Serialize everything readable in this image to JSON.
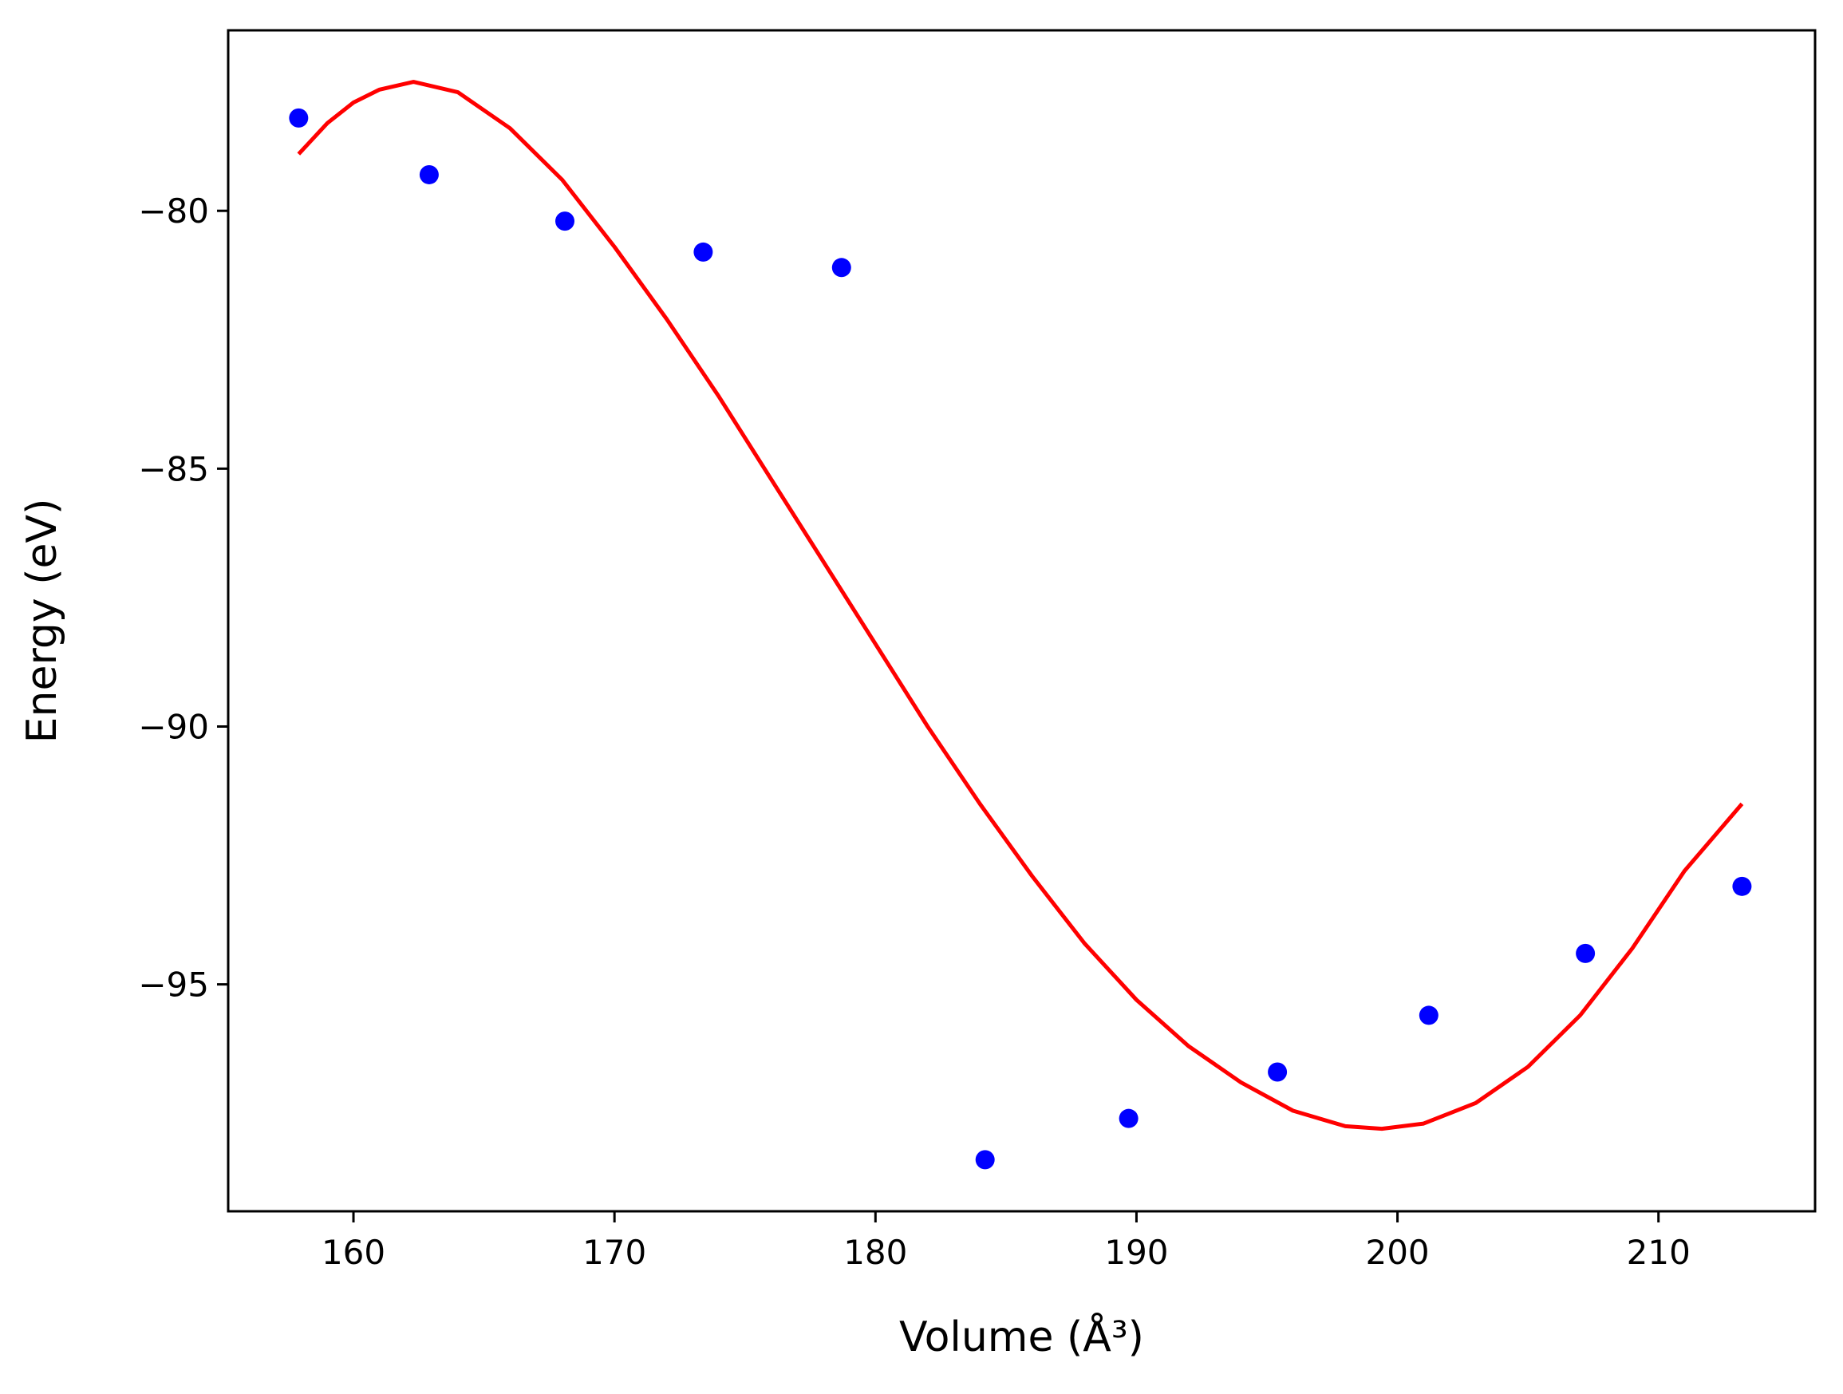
{
  "chart_data": {
    "type": "scatter",
    "xlabel": "Volume (Å³)",
    "ylabel": "Energy (eV)",
    "xlim": [
      155.2,
      216.0
    ],
    "ylim": [
      -99.4,
      -76.5
    ],
    "x_ticks": [
      160,
      170,
      180,
      190,
      200,
      210
    ],
    "y_ticks": [
      -95,
      -90,
      -85,
      -80
    ],
    "x_tick_labels": [
      "160",
      "170",
      "180",
      "190",
      "200",
      "210"
    ],
    "y_tick_labels": [
      "−95",
      "−90",
      "−85",
      "−80"
    ],
    "grid": false,
    "series": [
      {
        "kind": "scatter",
        "color": "#0000ff",
        "x": [
          157.9,
          162.9,
          168.1,
          173.4,
          178.7,
          184.2,
          189.7,
          195.4,
          201.2,
          207.2,
          213.2
        ],
        "y": [
          -78.2,
          -79.3,
          -80.2,
          -80.8,
          -81.1,
          -98.4,
          -97.6,
          -96.7,
          -95.6,
          -94.4,
          -93.1
        ]
      },
      {
        "kind": "line",
        "color": "#ff0000",
        "x": [
          157.9,
          159.0,
          160.0,
          161.0,
          162.3,
          164.0,
          166.0,
          168.0,
          170.0,
          172.0,
          174.0,
          176.0,
          178.0,
          180.0,
          182.0,
          184.0,
          186.0,
          188.0,
          190.0,
          192.0,
          194.0,
          196.0,
          198.0,
          199.4,
          201.0,
          203.0,
          205.0,
          207.0,
          209.0,
          211.0,
          213.2
        ],
        "y": [
          -78.9,
          -78.3,
          -77.9,
          -77.65,
          -77.5,
          -77.7,
          -78.4,
          -79.4,
          -80.7,
          -82.1,
          -83.6,
          -85.2,
          -86.8,
          -88.4,
          -90.0,
          -91.5,
          -92.9,
          -94.2,
          -95.3,
          -96.2,
          -96.9,
          -97.45,
          -97.75,
          -97.8,
          -97.7,
          -97.3,
          -96.6,
          -95.6,
          -94.3,
          -92.8,
          -91.5
        ]
      }
    ]
  }
}
